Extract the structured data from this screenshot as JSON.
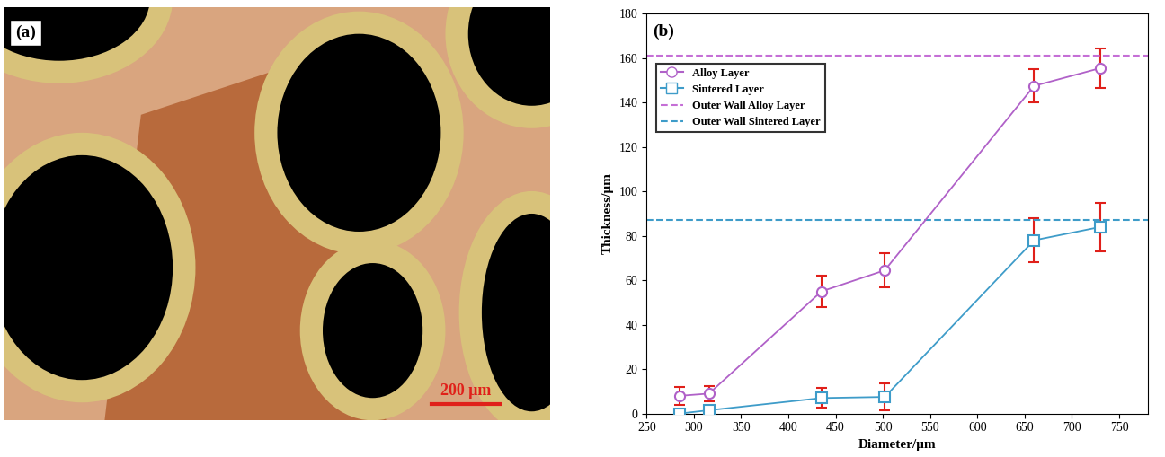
{
  "image_panel": {
    "label": "(a)",
    "scale_bar": "200 μm"
  },
  "chart_data": {
    "type": "line",
    "annotations": [
      "(b)"
    ],
    "x_label": "Diameter/μm",
    "y_label": "Thickness/μm",
    "x": [
      285,
      316,
      435,
      502,
      660,
      730
    ],
    "series": [
      {
        "name": "Alloy Layer",
        "color": "#b061c8",
        "marker": "circle",
        "line_style": "solid",
        "values": [
          8,
          9,
          55,
          64.5,
          147.5,
          155.5
        ],
        "error": [
          4,
          3.5,
          7,
          7.5,
          7.5,
          9
        ]
      },
      {
        "name": "Sintered Layer",
        "color": "#3e9cc9",
        "marker": "square",
        "line_style": "solid",
        "values": [
          0,
          1.5,
          7,
          7.5,
          78,
          84
        ],
        "error": [
          0,
          1,
          4.5,
          6,
          10,
          11
        ]
      },
      {
        "name": "Outer Wall Alloy Layer",
        "type": "hline",
        "color": "#c56fd6",
        "line_style": "dashed",
        "value": 161
      },
      {
        "name": "Outer Wall Sintered Layer",
        "type": "hline",
        "color": "#3e9cc9",
        "line_style": "dashed",
        "value": 87
      }
    ],
    "xlim": [
      250,
      780
    ],
    "xticks": [
      250,
      300,
      350,
      400,
      450,
      500,
      550,
      600,
      650,
      700,
      750
    ],
    "ylim": [
      0,
      180
    ],
    "yticks": [
      0,
      20,
      40,
      60,
      80,
      100,
      120,
      140,
      160,
      180
    ],
    "legend": "upper left",
    "grid": false
  }
}
